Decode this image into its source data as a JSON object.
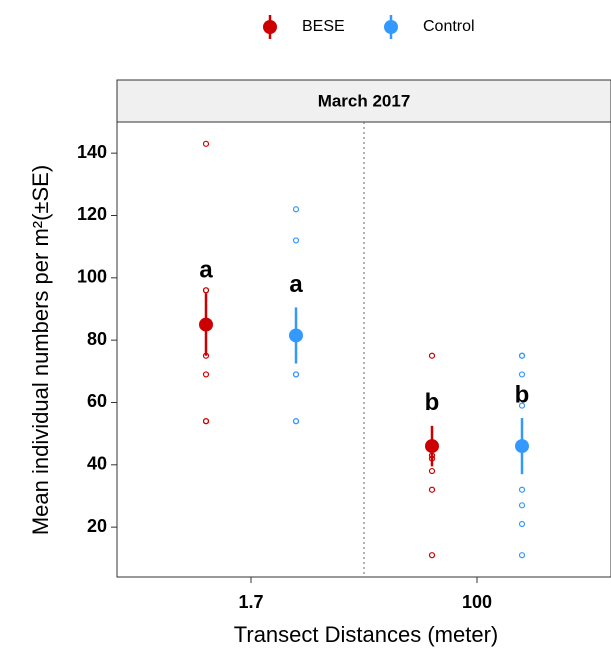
{
  "chart_data": {
    "type": "dot",
    "strip_title": "March 2017",
    "xlabel": "Transect Distances (meter)",
    "ylabel": "Mean individual numbers per m²(±SE)",
    "categories": [
      "1.7",
      "100"
    ],
    "ylim": [
      4,
      150
    ],
    "yticks": [
      20,
      40,
      60,
      80,
      100,
      120,
      140
    ],
    "series": [
      {
        "name": "BESE",
        "color": "#cc0000",
        "mean": [
          85,
          46
        ],
        "se": [
          10,
          6.5
        ],
        "letters": [
          "a",
          "b"
        ],
        "raw": [
          [
            143,
            96,
            96,
            75,
            69,
            54,
            54
          ],
          [
            75,
            43,
            42,
            38,
            32,
            11
          ]
        ]
      },
      {
        "name": "Control",
        "color": "#3399ff",
        "mean": [
          81.5,
          46
        ],
        "se": [
          9,
          9
        ],
        "letters": [
          "a",
          "b"
        ],
        "raw": [
          [
            122,
            112,
            69,
            69,
            54,
            54
          ],
          [
            75,
            75,
            69,
            59,
            32,
            27,
            21,
            11
          ]
        ]
      }
    ]
  }
}
